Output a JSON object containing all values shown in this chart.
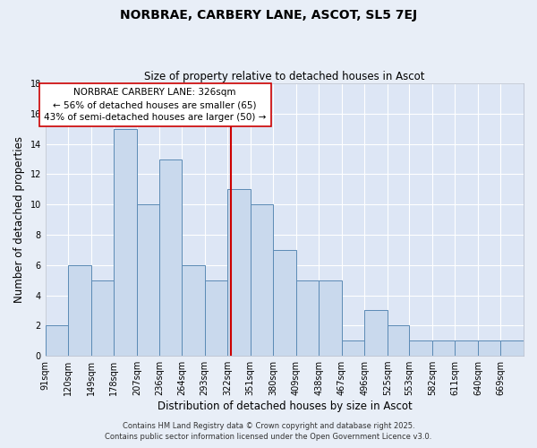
{
  "title": "NORBRAE, CARBERY LANE, ASCOT, SL5 7EJ",
  "subtitle": "Size of property relative to detached houses in Ascot",
  "xlabel": "Distribution of detached houses by size in Ascot",
  "ylabel": "Number of detached properties",
  "bin_labels": [
    "91sqm",
    "120sqm",
    "149sqm",
    "178sqm",
    "207sqm",
    "236sqm",
    "264sqm",
    "293sqm",
    "322sqm",
    "351sqm",
    "380sqm",
    "409sqm",
    "438sqm",
    "467sqm",
    "496sqm",
    "525sqm",
    "553sqm",
    "582sqm",
    "611sqm",
    "640sqm",
    "669sqm"
  ],
  "counts": [
    2,
    6,
    5,
    15,
    10,
    13,
    6,
    5,
    11,
    10,
    7,
    5,
    5,
    1,
    3,
    2,
    1,
    1,
    1,
    1,
    1
  ],
  "bin_edges": [
    91,
    120,
    149,
    178,
    207,
    236,
    264,
    293,
    322,
    351,
    380,
    409,
    438,
    467,
    496,
    525,
    553,
    582,
    611,
    640,
    669,
    698
  ],
  "marker_value": 326,
  "marker_label": "NORBRAE CARBERY LANE: 326sqm",
  "marker_line1": "← 56% of detached houses are smaller (65)",
  "marker_line2": "43% of semi-detached houses are larger (50) →",
  "bar_color": "#c9d9ed",
  "bar_edge_color": "#5b8ab5",
  "marker_color": "#cc0000",
  "annotation_box_color": "#ffffff",
  "annotation_box_edge": "#cc0000",
  "fig_bg_color": "#e8eef7",
  "axes_bg_color": "#dde6f5",
  "ylim": [
    0,
    18
  ],
  "yticks": [
    0,
    2,
    4,
    6,
    8,
    10,
    12,
    14,
    16,
    18
  ],
  "footer1": "Contains HM Land Registry data © Crown copyright and database right 2025.",
  "footer2": "Contains public sector information licensed under the Open Government Licence v3.0.",
  "title_fontsize": 10,
  "subtitle_fontsize": 8.5,
  "axis_label_fontsize": 8.5,
  "tick_fontsize": 7,
  "annotation_fontsize": 7.5,
  "footer_fontsize": 6
}
